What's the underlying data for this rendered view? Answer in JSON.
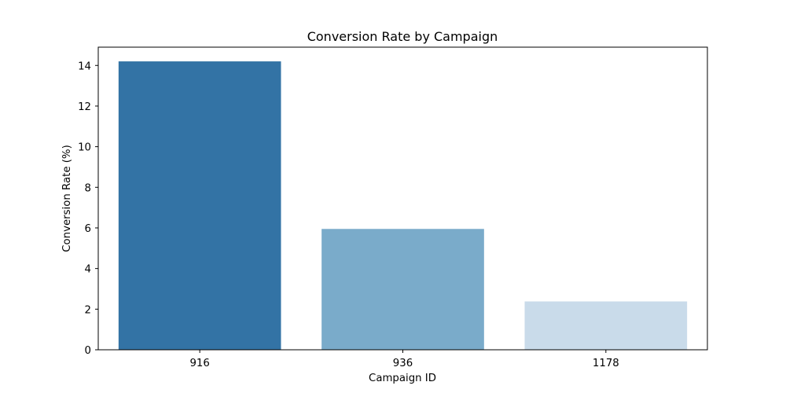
{
  "chart_data": {
    "type": "bar",
    "title": "Conversion Rate by Campaign",
    "xlabel": "Campaign ID",
    "ylabel": "Conversion Rate (%)",
    "categories": [
      "916",
      "936",
      "1178"
    ],
    "values": [
      14.2,
      5.95,
      2.38
    ],
    "ylim": [
      0,
      14.9
    ],
    "yticks": [
      "0",
      "2",
      "4",
      "6",
      "8",
      "10",
      "12",
      "14"
    ],
    "colors": [
      "#3373a5",
      "#7aabca",
      "#c9dbea"
    ],
    "grid": false,
    "legend": "none"
  }
}
